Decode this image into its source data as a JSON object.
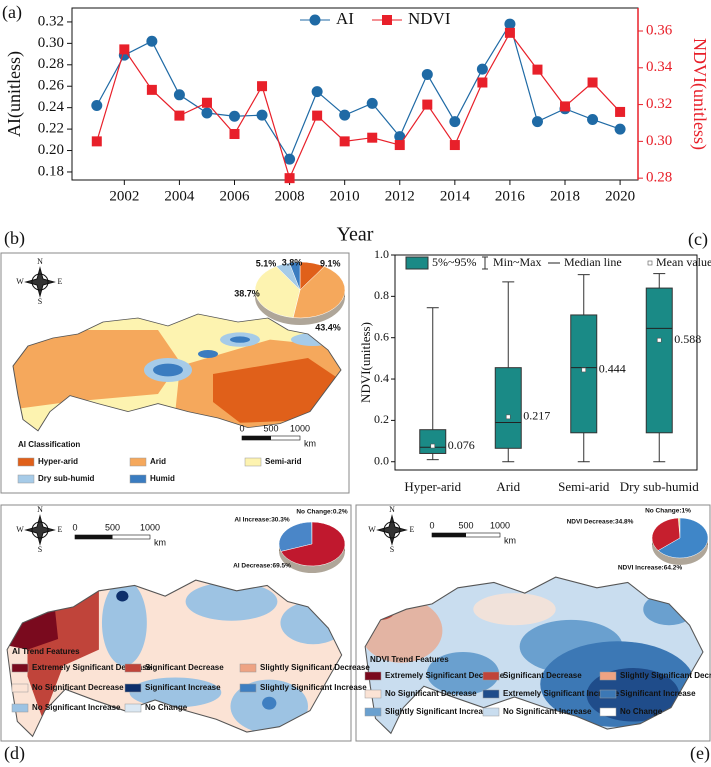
{
  "chart_data": [
    {
      "type": "line",
      "panel_label": "(a)",
      "x_label": "Year",
      "y_label": "AI(unitless)",
      "y2_label": "NDVI(unitless)",
      "x": [
        2001,
        2002,
        2003,
        2004,
        2005,
        2006,
        2007,
        2008,
        2009,
        2010,
        2011,
        2012,
        2013,
        2014,
        2015,
        2016,
        2017,
        2018,
        2019,
        2020
      ],
      "xlim": [
        2000.1,
        2020.65
      ],
      "xticks": [
        2002,
        2004,
        2006,
        2008,
        2010,
        2012,
        2014,
        2016,
        2018,
        2020
      ],
      "ylim": [
        0.1725,
        0.333
      ],
      "yticks": [
        0.18,
        {
          "value": 0.2,
          "label": "0.20"
        },
        0.22,
        0.24,
        0.26,
        0.28,
        {
          "value": 0.3,
          "label": "0.30"
        },
        0.32
      ],
      "y2lim": [
        0.279,
        0.3725
      ],
      "y2ticks": [
        0.28,
        {
          "value": 0.3,
          "label": "0.30"
        },
        0.32,
        0.34,
        0.36
      ],
      "series": [
        {
          "name": "AI",
          "color": "#1f6aa5",
          "marker": "circle",
          "values": [
            0.242,
            0.289,
            0.302,
            0.252,
            0.235,
            0.232,
            0.233,
            0.192,
            0.255,
            0.233,
            0.244,
            0.213,
            0.271,
            0.227,
            0.276,
            0.318,
            0.227,
            0.239,
            0.229,
            0.22
          ]
        },
        {
          "name": "NDVI",
          "color": "#e8202a",
          "marker": "square",
          "axis": "y2",
          "values": [
            0.3,
            0.35,
            0.328,
            0.314,
            0.321,
            0.304,
            0.33,
            0.28,
            0.314,
            0.3,
            0.302,
            0.298,
            0.32,
            0.298,
            0.332,
            0.359,
            0.339,
            0.319,
            0.332,
            0.316
          ]
        }
      ]
    },
    {
      "type": "pie",
      "panel_label": "(b)",
      "values": [
        9.1,
        43.4,
        38.7,
        5.1,
        3.8
      ],
      "value_labels": [
        "9.1%",
        "43.4%",
        "38.7%",
        "5.1%",
        "3.8%"
      ],
      "colors": [
        "#e0601a",
        "#f5a85c",
        "#fdf3b0",
        "#a6cbe8",
        "#3a7cc0"
      ],
      "legend_title": "AI Classification",
      "legend_items": [
        {
          "name": "Hyper-arid",
          "color": "#e0601a"
        },
        {
          "name": "Arid",
          "color": "#f5a85c"
        },
        {
          "name": "Semi-arid",
          "color": "#fdf3b0"
        },
        {
          "name": "Dry sub-humid",
          "color": "#a6cbe8"
        },
        {
          "name": "Humid",
          "color": "#3a7cc0"
        }
      ],
      "compass": [
        "N",
        "S",
        "W",
        "E"
      ],
      "scale_bar": {
        "ticks": [
          0,
          500,
          1000
        ],
        "unit": "km"
      }
    },
    {
      "type": "box",
      "panel_label": "(c)",
      "y_label": "NDVI(unitless)",
      "categories": [
        "Hyper-arid",
        "Arid",
        "Semi-arid",
        "Dry sub-humid"
      ],
      "color": "#1a8a86",
      "ylim": [
        -0.04,
        1.0
      ],
      "yticks": [
        {
          "value": 0,
          "label": "0.0"
        },
        0.2,
        0.4,
        0.6,
        0.8,
        {
          "value": 1,
          "label": "1.0"
        }
      ],
      "legend": [
        "5%~95%",
        "Min~Max",
        "Median line",
        "Mean value"
      ],
      "boxes": [
        {
          "min": 0.01,
          "q1": 0.04,
          "median": 0.07,
          "q3": 0.155,
          "max": 0.745,
          "mean": 0.076
        },
        {
          "min": 0.0,
          "q1": 0.065,
          "median": 0.19,
          "q3": 0.455,
          "max": 0.87,
          "mean": 0.217
        },
        {
          "min": 0.0,
          "q1": 0.14,
          "median": 0.455,
          "q3": 0.71,
          "max": 0.905,
          "mean": 0.444
        },
        {
          "min": 0.0,
          "q1": 0.14,
          "median": 0.645,
          "q3": 0.84,
          "max": 0.91,
          "mean": 0.588
        }
      ]
    },
    {
      "type": "pie",
      "panel_label": "(d)",
      "values": [
        0.2,
        30.3,
        69.5
      ],
      "value_labels": [
        "No Change:0.2%",
        "AI Increase:30.3%",
        "AI Decrease:69.5%"
      ],
      "colors": [
        "#e8e8e8",
        "#4a86c8",
        "#c0182e"
      ],
      "legend_title": "AI Trend Features",
      "legend_items": [
        {
          "name": "Extremely Significant Decrease",
          "color": "#7a0a1e"
        },
        {
          "name": "Significant Decrease",
          "color": "#c0443a"
        },
        {
          "name": "Slightly Significant Decrease",
          "color": "#eea383"
        },
        {
          "name": "No Significant Decrease",
          "color": "#fbe3d5"
        },
        {
          "name": "Significant Increase",
          "color": "#0d2f6b"
        },
        {
          "name": "Slightly Significant Increase",
          "color": "#3f7fc1"
        },
        {
          "name": "No Significant Increase",
          "color": "#9dc3e3"
        },
        {
          "name": "No Change",
          "color": "#dbe8f3"
        }
      ],
      "compass": [
        "N",
        "S",
        "W",
        "E"
      ],
      "scale_bar": {
        "ticks": [
          0,
          500,
          1000
        ],
        "unit": "km"
      }
    },
    {
      "type": "pie",
      "panel_label": "(e)",
      "values": [
        1,
        34.8,
        64.2
      ],
      "value_labels": [
        "No Change:1%",
        "NDVI Decrease:34.8%",
        "NDVI Increase:64.2%"
      ],
      "colors": [
        "#d9d36a",
        "#c61f2e",
        "#3f86c8"
      ],
      "legend_title": "NDVI Trend Features",
      "legend_items": [
        {
          "name": "Extremely Significant Decrease",
          "color": "#7a0a1e"
        },
        {
          "name": "Significant Decrease",
          "color": "#c0443a"
        },
        {
          "name": "Slightly Significant Decrease",
          "color": "#eea383"
        },
        {
          "name": "No Significant Decrease",
          "color": "#fbe3d5"
        },
        {
          "name": "Extremely Significant Increase",
          "color": "#1f4c8a"
        },
        {
          "name": "Significant Increase",
          "color": "#3c78b5"
        },
        {
          "name": "Slightly Significant Increase",
          "color": "#6aa0cf"
        },
        {
          "name": "No Significant Increase",
          "color": "#c9ddef"
        },
        {
          "name": "No Change",
          "color": "#ffffff"
        }
      ],
      "compass": [
        "N",
        "S",
        "W",
        "E"
      ],
      "scale_bar": {
        "ticks": [
          0,
          500,
          1000
        ],
        "unit": "km"
      }
    }
  ]
}
